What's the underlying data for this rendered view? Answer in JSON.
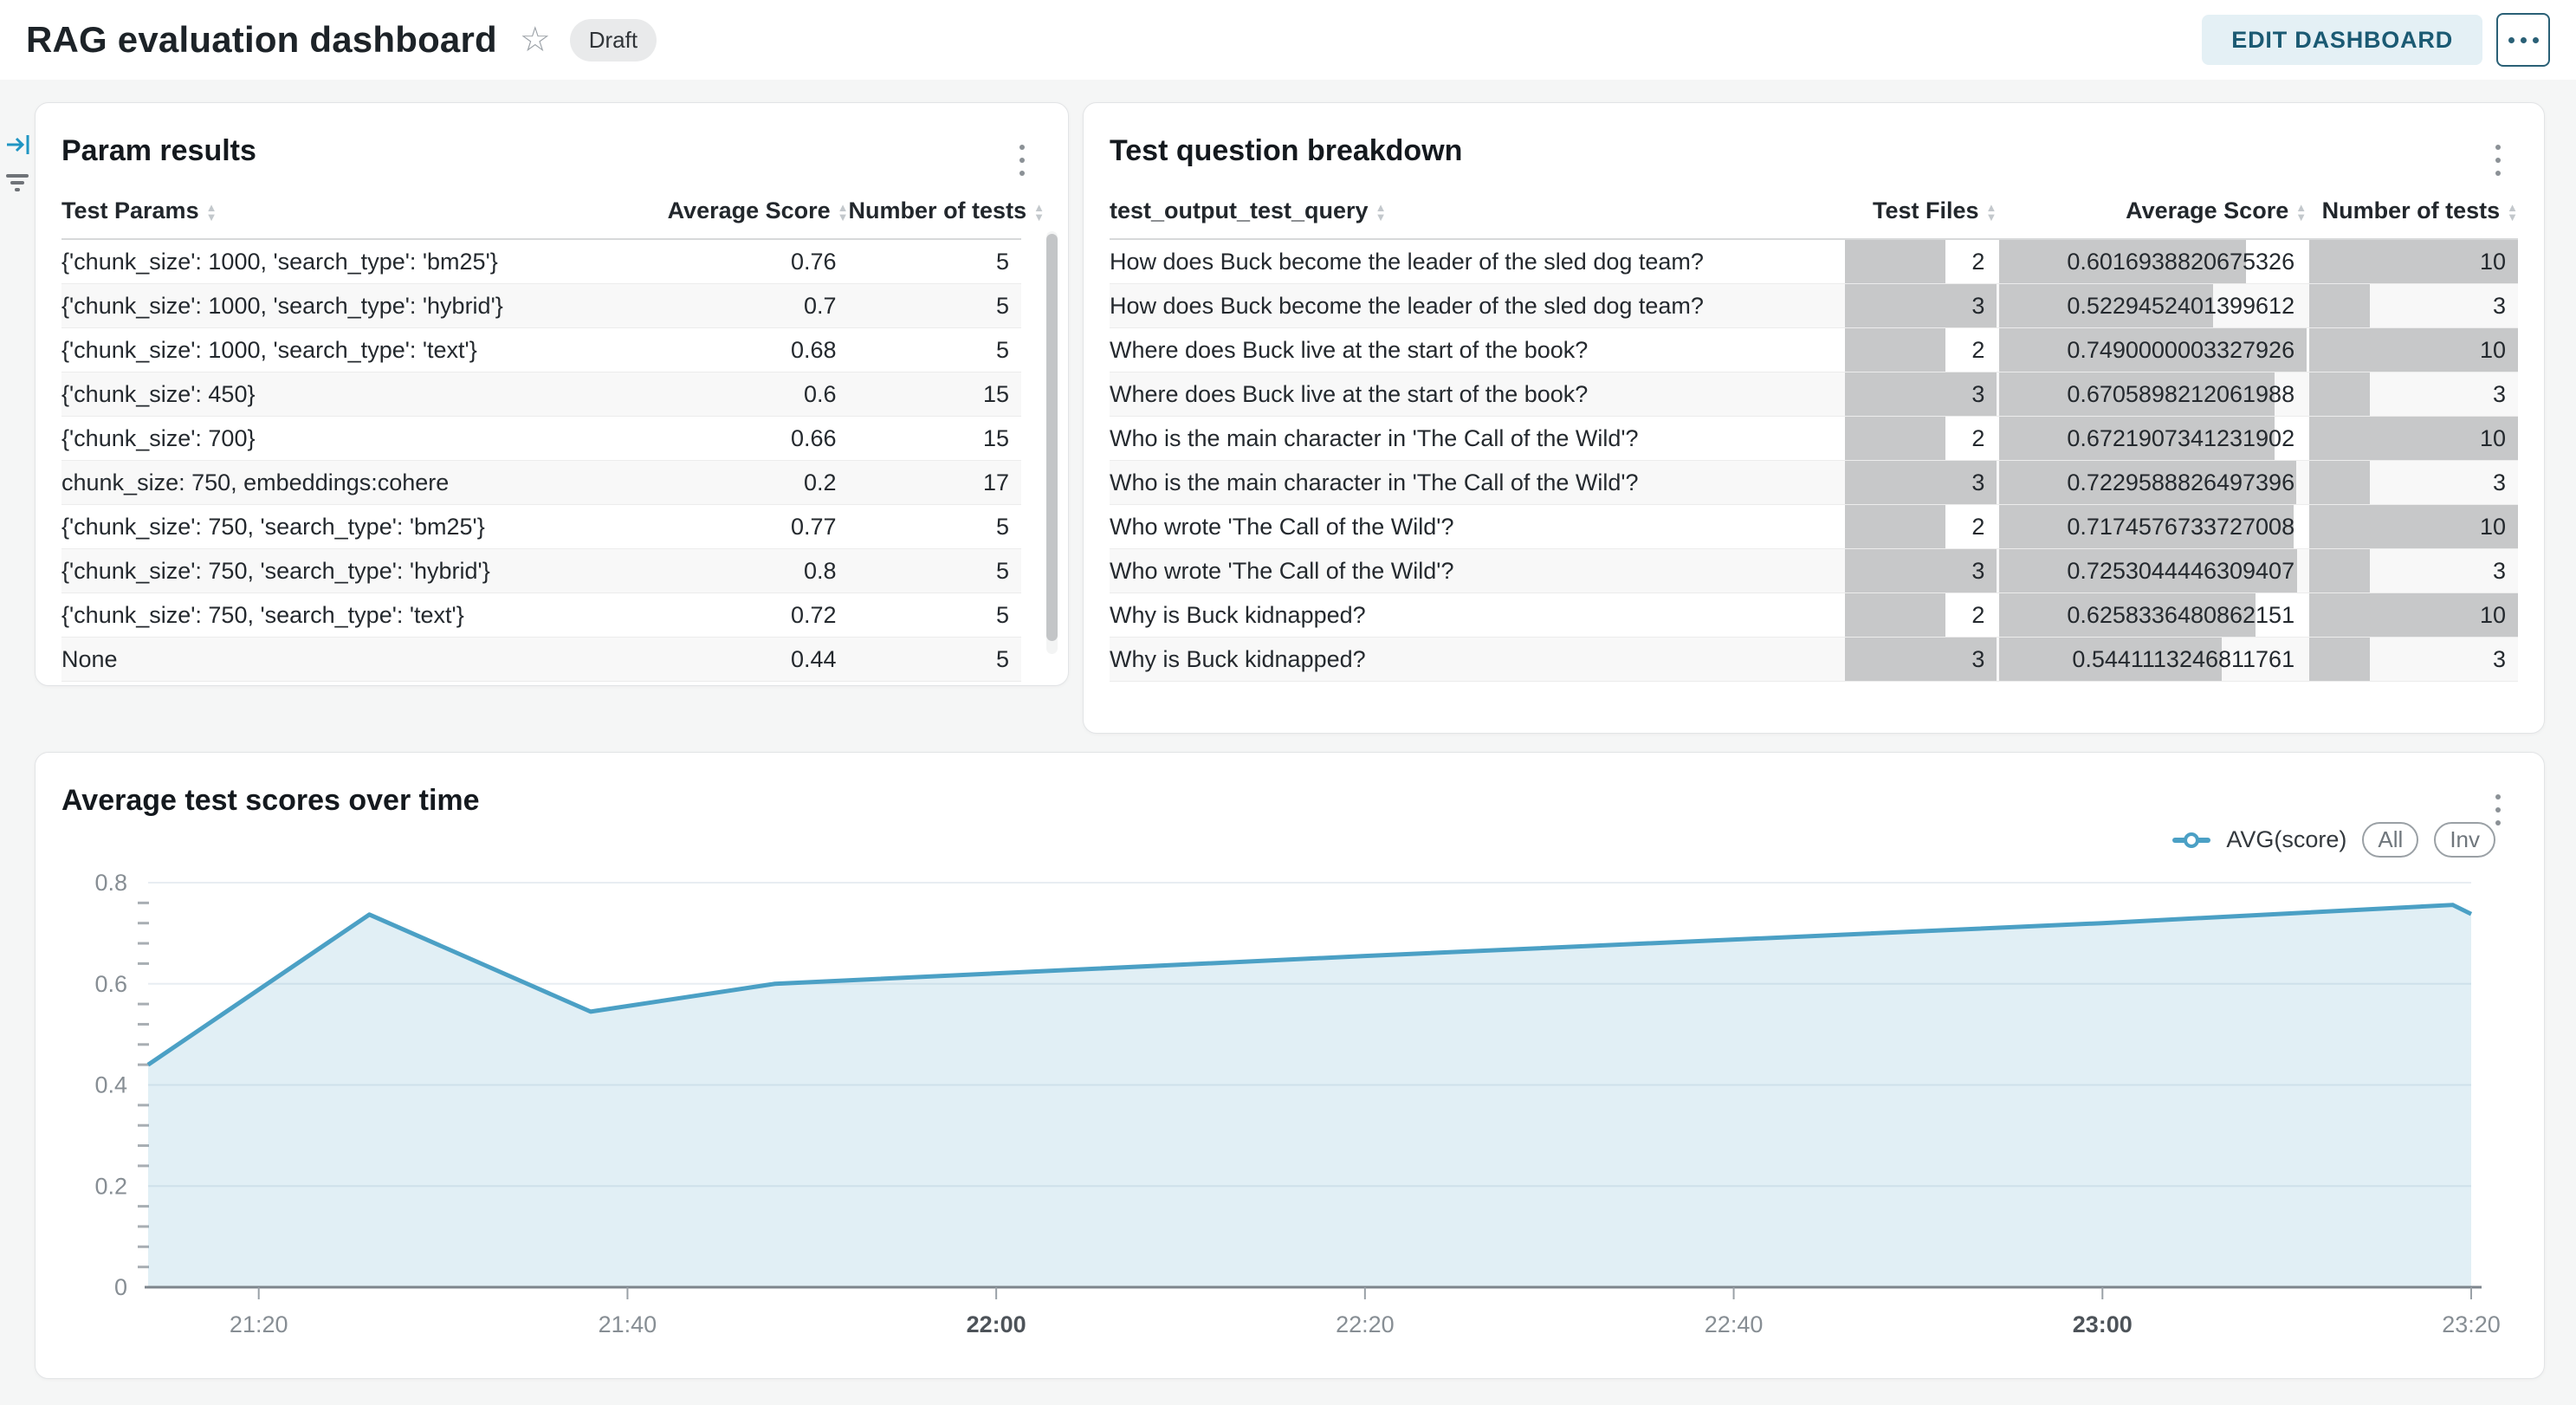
{
  "header": {
    "title": "RAG evaluation dashboard",
    "status_badge": "Draft",
    "edit_button": "EDIT DASHBOARD"
  },
  "icons": {
    "star": "☆",
    "kebab_menu": "vertical-three-dots",
    "collapse_panel": "arrow-into-bar",
    "filter": "three-decreasing-bars",
    "sort": "up-down-triangles"
  },
  "colors": {
    "line": "#4ba0c5",
    "area_fill": "#4ba0c5",
    "bar_fill": "#c7c8c9",
    "edit_button_bg": "#e4f0f5",
    "edit_button_text": "#1b5a73",
    "gridline": "#e8edf2",
    "axis_line": "#7d858c"
  },
  "param_results": {
    "title": "Param results",
    "columns": [
      "Test Params",
      "Average Score",
      "Number of tests"
    ],
    "rows": [
      [
        "{'chunk_size': 1000, 'search_type': 'bm25'}",
        "0.76",
        "5"
      ],
      [
        "{'chunk_size': 1000, 'search_type': 'hybrid'}",
        "0.7",
        "5"
      ],
      [
        "{'chunk_size': 1000, 'search_type': 'text'}",
        "0.68",
        "5"
      ],
      [
        "{'chunk_size': 450}",
        "0.6",
        "15"
      ],
      [
        "{'chunk_size': 700}",
        "0.66",
        "15"
      ],
      [
        "chunk_size: 750, embeddings:cohere",
        "0.2",
        "17"
      ],
      [
        "{'chunk_size': 750, 'search_type': 'bm25'}",
        "0.77",
        "5"
      ],
      [
        "{'chunk_size': 750, 'search_type': 'hybrid'}",
        "0.8",
        "5"
      ],
      [
        "{'chunk_size': 750, 'search_type': 'text'}",
        "0.72",
        "5"
      ],
      [
        "None",
        "0.44",
        "5"
      ]
    ]
  },
  "question_breakdown": {
    "title": "Test question breakdown",
    "columns": [
      "test_output_test_query",
      "Test Files",
      "Average Score",
      "Number of tests"
    ],
    "rows": [
      {
        "query": "How does Buck become the leader of the sled dog team?",
        "files": "2",
        "score": "0.6016938820675326",
        "tests": "10"
      },
      {
        "query": "How does Buck become the leader of the sled dog team?",
        "files": "3",
        "score": "0.5229452401399612",
        "tests": "3"
      },
      {
        "query": "Where does Buck live at the start of the book?",
        "files": "2",
        "score": "0.7490000003327926",
        "tests": "10"
      },
      {
        "query": "Where does Buck live at the start of the book?",
        "files": "3",
        "score": "0.6705898212061988",
        "tests": "3"
      },
      {
        "query": "Who is the main character in 'The Call of the Wild'?",
        "files": "2",
        "score": "0.6721907341231902",
        "tests": "10"
      },
      {
        "query": "Who is the main character in 'The Call of the Wild'?",
        "files": "3",
        "score": "0.7229588826497396",
        "tests": "3"
      },
      {
        "query": "Who wrote 'The Call of the Wild'?",
        "files": "2",
        "score": "0.7174576733727008",
        "tests": "10"
      },
      {
        "query": "Who wrote 'The Call of the Wild'?",
        "files": "3",
        "score": "0.7253044446309407",
        "tests": "3"
      },
      {
        "query": "Why is Buck kidnapped?",
        "files": "2",
        "score": "0.6258336480862151",
        "tests": "10"
      },
      {
        "query": "Why is Buck kidnapped?",
        "files": "3",
        "score": "0.5441113246811761",
        "tests": "3"
      }
    ]
  },
  "chart_card": {
    "title": "Average test scores over time",
    "legend_label": "AVG(score)",
    "zoom_buttons": [
      "All",
      "Inv"
    ]
  },
  "chart_data": {
    "type": "area",
    "title": "Average test scores over time",
    "series": [
      {
        "name": "AVG(score)",
        "points": [
          [
            "21:14",
            0.44
          ],
          [
            "21:26",
            0.737
          ],
          [
            "21:38",
            0.545
          ],
          [
            "21:48",
            0.6
          ],
          [
            "22:20",
            0.655
          ],
          [
            "23:00",
            0.72
          ],
          [
            "23:19",
            0.756
          ],
          [
            "23:20",
            0.738
          ]
        ]
      }
    ],
    "x_range": [
      "21:14",
      "23:20"
    ],
    "x_ticks": [
      {
        "label": "21:20",
        "bold": false
      },
      {
        "label": "21:40",
        "bold": false
      },
      {
        "label": "22:00",
        "bold": true
      },
      {
        "label": "22:20",
        "bold": false
      },
      {
        "label": "22:40",
        "bold": false
      },
      {
        "label": "23:00",
        "bold": true
      },
      {
        "label": "23:20",
        "bold": false
      }
    ],
    "y_ticks": [
      {
        "label": "0",
        "value": 0
      },
      {
        "label": "0.2",
        "value": 0.2
      },
      {
        "label": "0.4",
        "value": 0.4
      },
      {
        "label": "0.6",
        "value": 0.6
      },
      {
        "label": "0.8",
        "value": 0.8
      }
    ],
    "ylim": [
      0,
      0.8
    ],
    "grid": true,
    "legend_position": "top-right"
  }
}
